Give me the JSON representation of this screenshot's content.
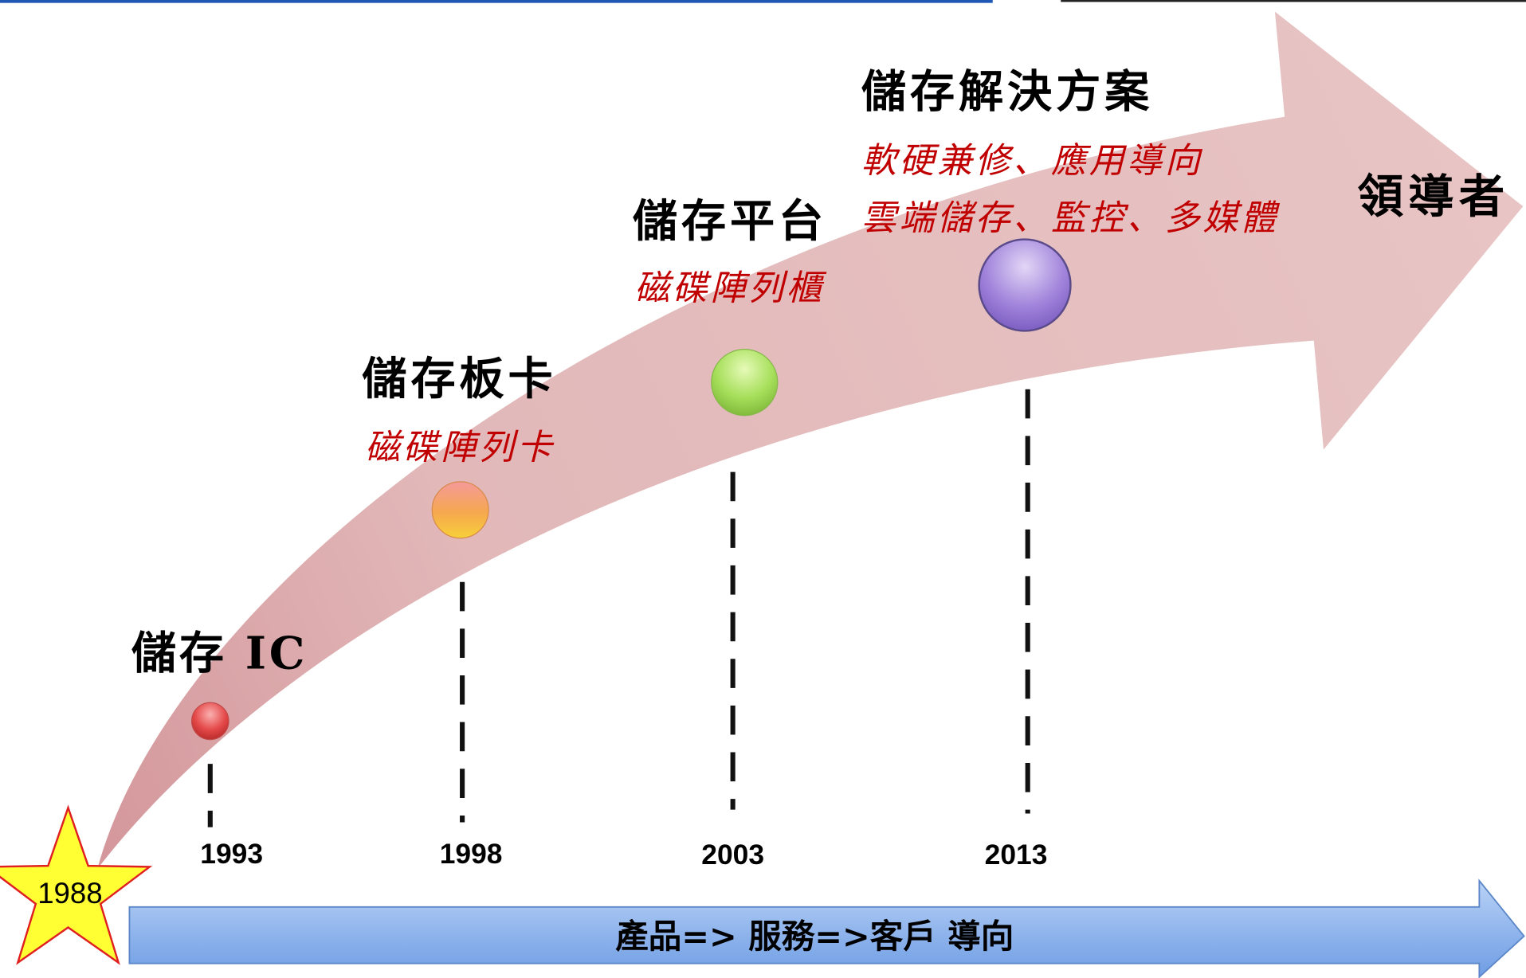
{
  "milestones": [
    {
      "year": "1993",
      "title": "儲存 IC",
      "details": []
    },
    {
      "year": "1998",
      "title": "儲存板卡",
      "details": [
        "磁碟陣列卡"
      ]
    },
    {
      "year": "2003",
      "title": "儲存平台",
      "details": [
        "磁碟陣列櫃"
      ]
    },
    {
      "year": "2013",
      "title": "儲存解決方案",
      "details": [
        "軟硬兼修、應用導向",
        "雲端儲存、監控、多媒體"
      ]
    }
  ],
  "arrow_end_label": "領導者",
  "start_marker": {
    "year": "1988"
  },
  "direction_arrow": {
    "label": "產品=> 服務=>客戶 導向"
  },
  "colors": {
    "title_text": "#000000",
    "detail_text": "#c00000",
    "arrow_pink": "#e8c4c4",
    "star_fill": "#ffff33",
    "star_outline": "#e02020",
    "direction_arrow_blue": "#8fb4ec",
    "header_rule_blue": "#1f57b5",
    "header_rule_dark": "#222222",
    "markers": {
      "1993": "#e44848",
      "1998": "#f6a84e",
      "2003": "#a6df5a",
      "2013": "#a184db"
    }
  }
}
